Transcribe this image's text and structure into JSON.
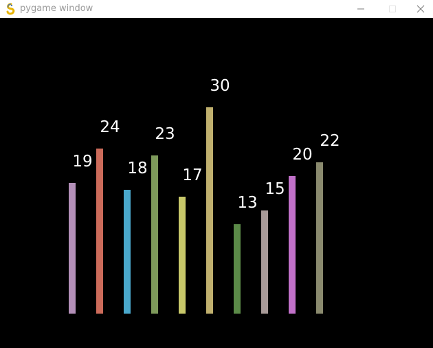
{
  "window": {
    "title": "pygame window"
  },
  "icons": {
    "app": "pygame-snake-icon",
    "minimize": "minimize-icon",
    "maximize": "maximize-icon",
    "close": "close-icon"
  },
  "chart_data": {
    "type": "bar",
    "values": [
      19,
      24,
      18,
      23,
      17,
      30,
      13,
      15,
      20,
      22
    ],
    "labels": [
      "19",
      "24",
      "18",
      "23",
      "17",
      "30",
      "13",
      "15",
      "20",
      "22"
    ],
    "colors": [
      "#b38fb8",
      "#cc6b5a",
      "#4aa8cc",
      "#7e9a5b",
      "#c8c86a",
      "#c0b06e",
      "#5b8a48",
      "#a89a98",
      "#c070c8",
      "#8a8a6e"
    ],
    "background": "#000000",
    "label_color": "#ffffff",
    "grid": false,
    "legend": "none"
  }
}
